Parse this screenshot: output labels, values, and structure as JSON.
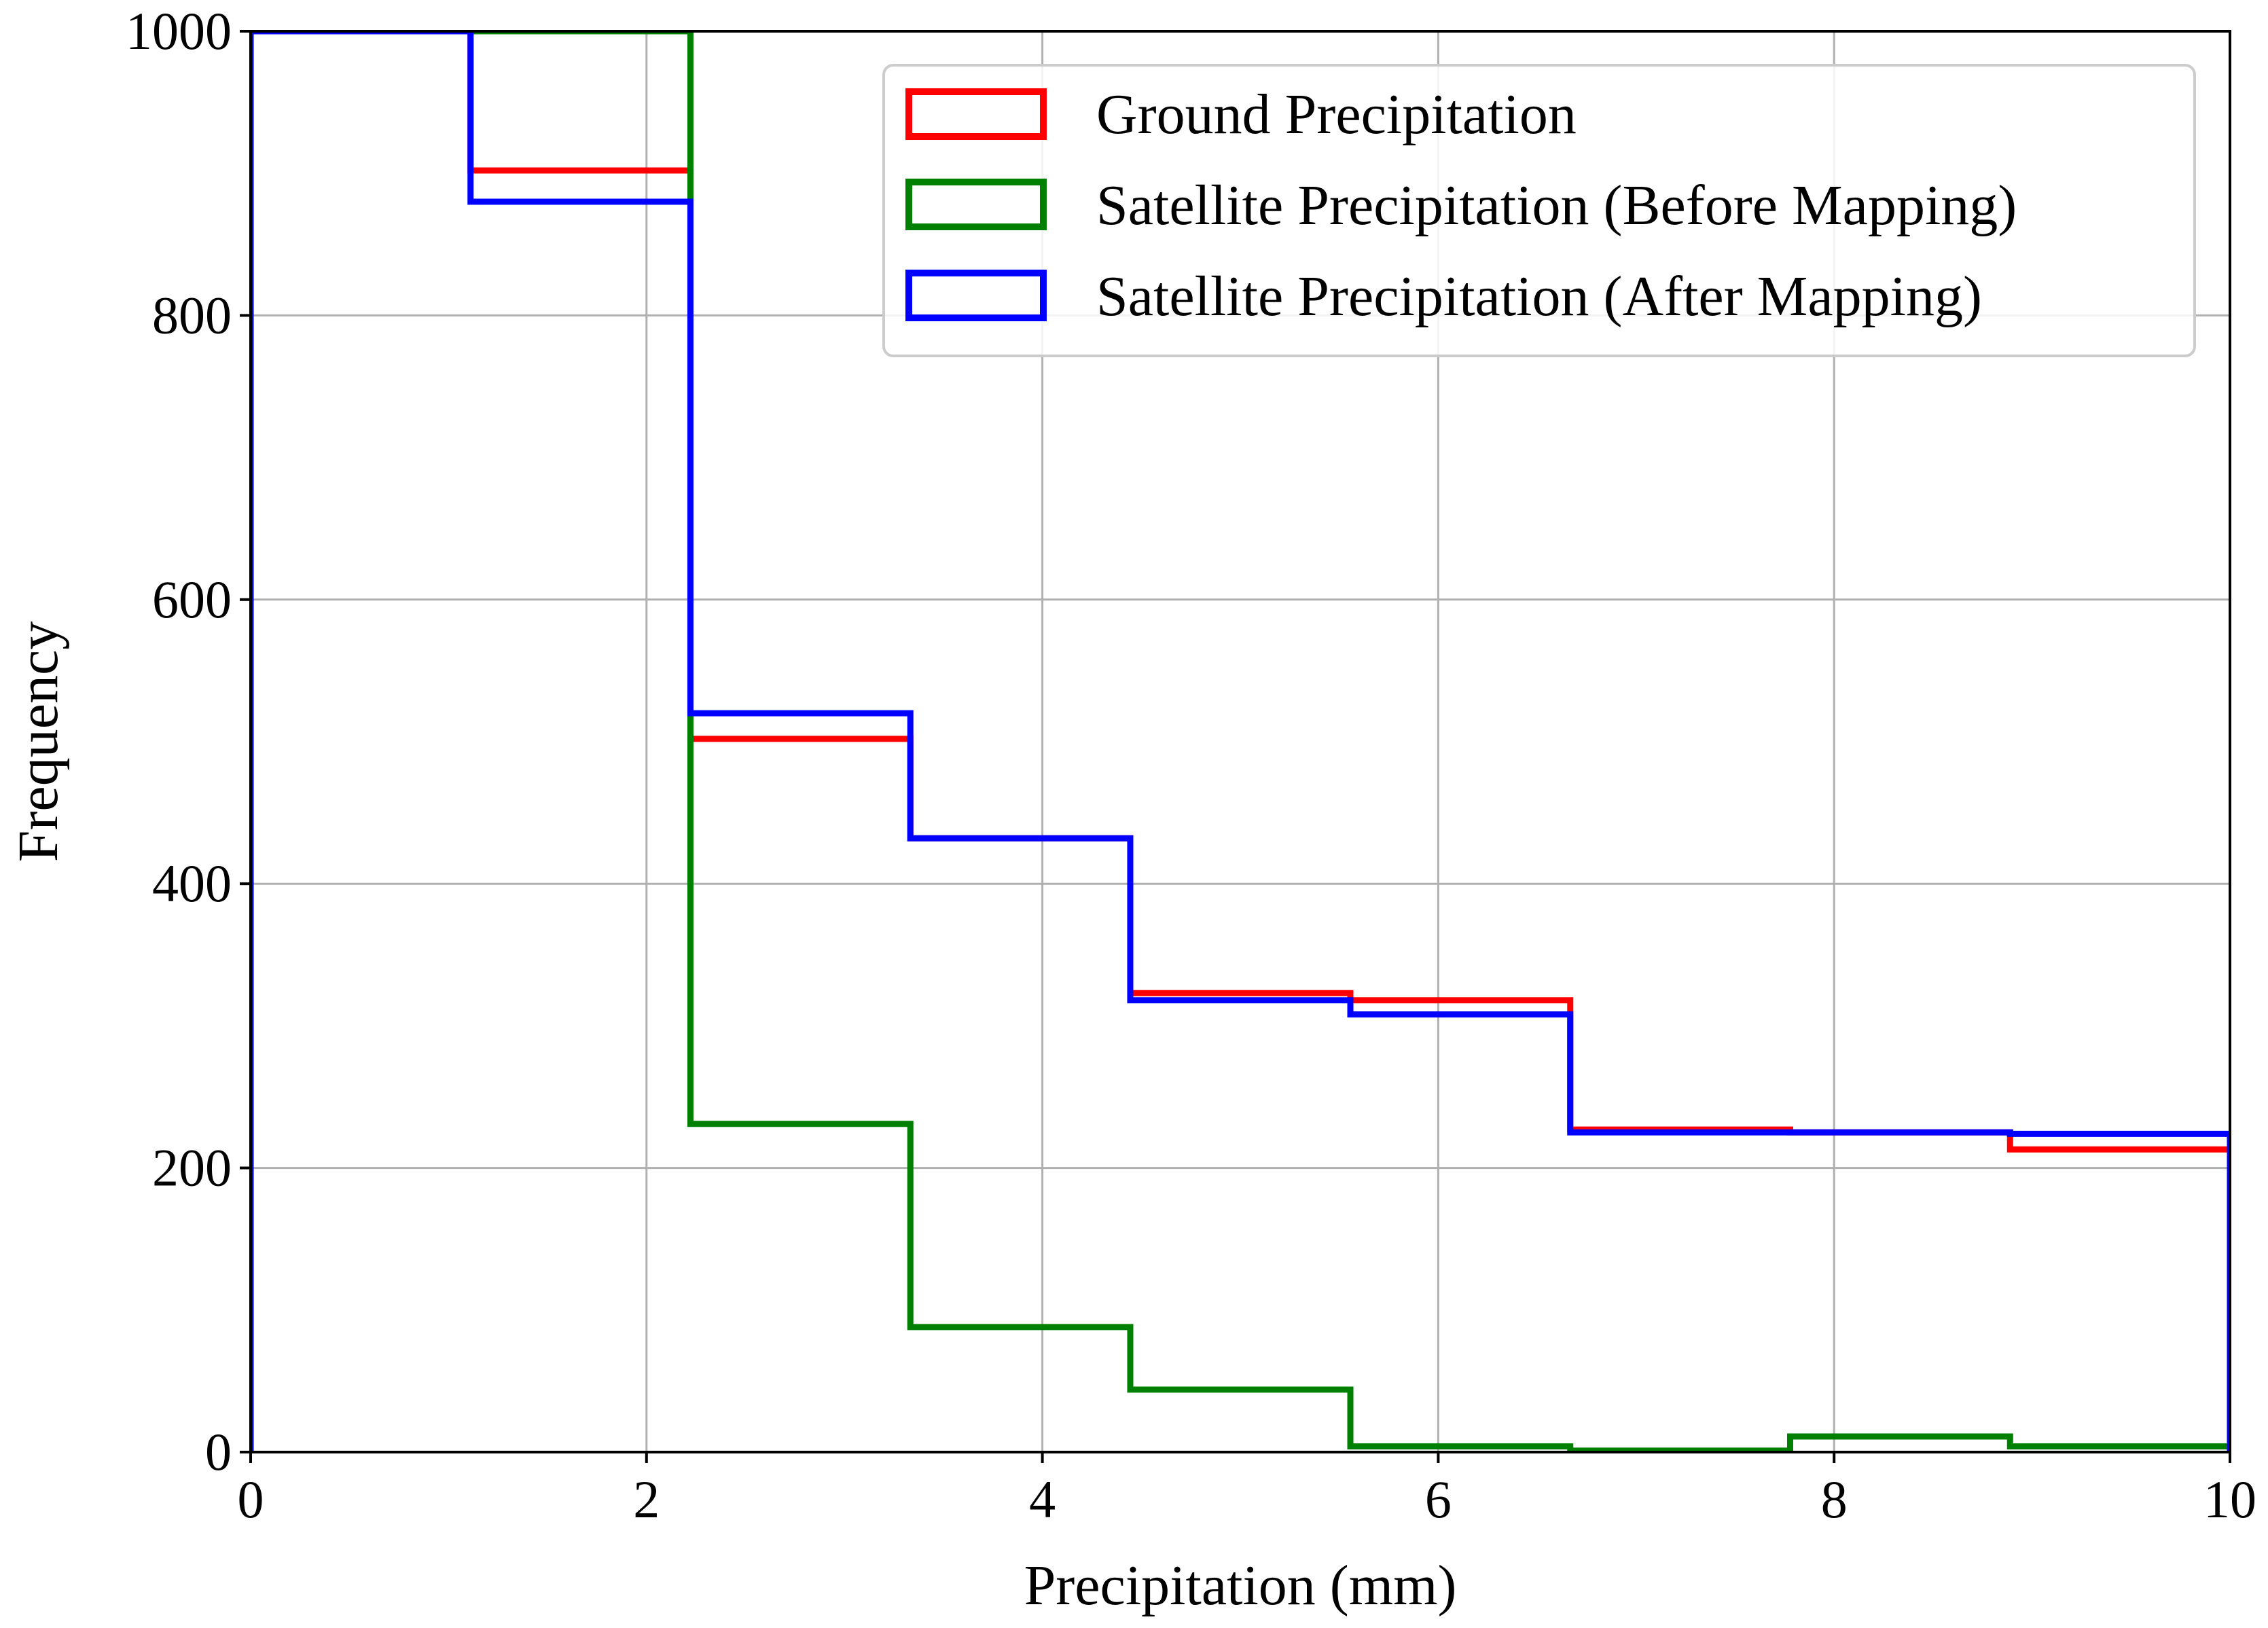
{
  "chart_data": {
    "type": "histogram-step",
    "title": "",
    "xlabel": "Precipitation (mm)",
    "ylabel": "Frequency",
    "xlim": [
      0,
      10
    ],
    "ylim": [
      0,
      1000
    ],
    "grid": true,
    "legend_position": "top-right",
    "x_ticks": [
      0,
      2,
      4,
      6,
      8,
      10
    ],
    "x_tick_labels": [
      "0",
      "2",
      "4",
      "6",
      "8",
      "10"
    ],
    "y_ticks": [
      0,
      200,
      400,
      600,
      800,
      1000
    ],
    "y_tick_labels": [
      "0",
      "200",
      "400",
      "600",
      "800",
      "1000"
    ],
    "bin_edges": [
      0,
      1.111,
      2.222,
      3.333,
      4.444,
      5.556,
      6.667,
      7.778,
      8.889,
      10
    ],
    "series": [
      {
        "name": "Ground Precipitation",
        "color": "#ff0000",
        "values": [
          1000,
          902,
          502,
          432,
          323,
          318,
          227,
          225,
          213
        ]
      },
      {
        "name": "Satellite Precipitation (Before Mapping)",
        "color": "#008000",
        "values": [
          1000,
          1000,
          231,
          88,
          44,
          4,
          1,
          11,
          4
        ]
      },
      {
        "name": "Satellite Precipitation (After Mapping)",
        "color": "#0000ff",
        "values": [
          1000,
          880,
          520,
          432,
          318,
          308,
          225,
          225,
          224
        ]
      }
    ]
  }
}
